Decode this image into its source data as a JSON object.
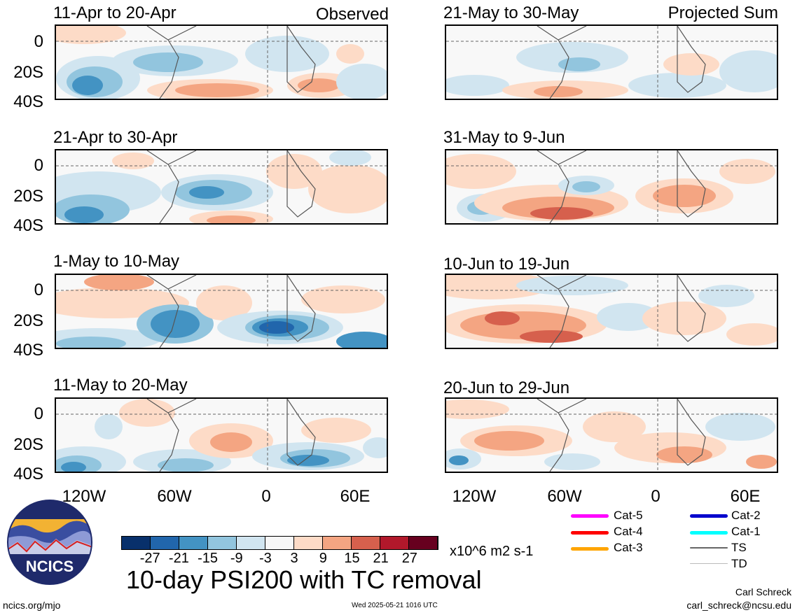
{
  "panels": {
    "p1": {
      "title": "11-Apr to 20-Apr",
      "tag": "Observed"
    },
    "p2": {
      "title": "21-Apr to 30-Apr"
    },
    "p3": {
      "title": "1-May to 10-May"
    },
    "p4": {
      "title": "11-May to 20-May"
    },
    "p5": {
      "title": "21-May to 30-May",
      "tag": "Projected Sum"
    },
    "p6": {
      "title": "31-May to 9-Jun"
    },
    "p7": {
      "title": "10-Jun to 19-Jun"
    },
    "p8": {
      "title": "20-Jun to 29-Jun"
    }
  },
  "y_axis": {
    "lat0": "0",
    "lat20": "20S",
    "lat40": "40S"
  },
  "x_axis": {
    "a": "120W",
    "b": "60W",
    "c": "0",
    "d": "60E"
  },
  "colorbar": {
    "colors": [
      "#08306b",
      "#2166ac",
      "#4393c3",
      "#92c5de",
      "#d1e5f0",
      "#f7f7f7",
      "#fddbc7",
      "#f4a582",
      "#d6604d",
      "#b2182b",
      "#67001f"
    ],
    "labels": [
      "-27",
      "-21",
      "-15",
      "-9",
      "-3",
      "3",
      "9",
      "15",
      "21",
      "27"
    ],
    "units": "x10^6 m2 s-1"
  },
  "logo": {
    "text": "NCICS"
  },
  "main_title": "10-day PSI200 with TC removal",
  "footer": {
    "url": "ncics.org/mjo",
    "timestamp": "Wed 2025-05-21 1016 UTC",
    "author": "Carl Schreck",
    "email": "carl_schreck@ncsu.edu"
  },
  "legend": {
    "cat5": {
      "label": "Cat-5",
      "color": "#ff00ff"
    },
    "cat4": {
      "label": "Cat-4",
      "color": "#ff0000"
    },
    "cat3": {
      "label": "Cat-3",
      "color": "#ffa500"
    },
    "cat2": {
      "label": "Cat-2",
      "color": "#0000cd"
    },
    "cat1": {
      "label": "Cat-1",
      "color": "#00ffff"
    },
    "ts": {
      "label": "TS",
      "color": "#666666"
    },
    "td": {
      "label": "TD",
      "color": "#bbbbbb"
    }
  }
}
